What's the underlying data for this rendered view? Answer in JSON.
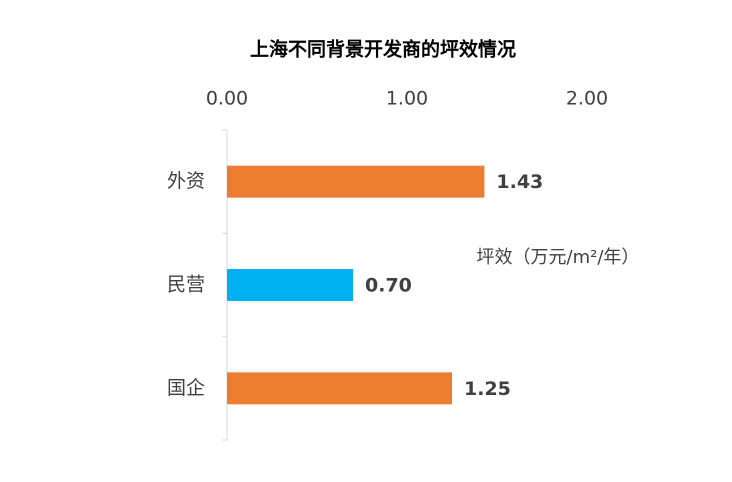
{
  "chart_data": {
    "type": "hbar",
    "title": "上海不同背景开发商的坪效情况",
    "annotation": "坪效（万元/m²/年）",
    "categories": [
      "外资",
      "民营",
      "国企"
    ],
    "values": [
      1.43,
      0.7,
      1.25
    ],
    "value_labels": [
      "1.43",
      "0.70",
      "1.25"
    ],
    "colors": [
      "#ED7D31",
      "#00B0F0",
      "#ED7D31"
    ],
    "xlim": [
      0,
      2
    ],
    "xticks": [
      {
        "value": 0,
        "label": "0.00"
      },
      {
        "value": 1,
        "label": "1.00"
      },
      {
        "value": 2,
        "label": "2.00"
      }
    ]
  }
}
